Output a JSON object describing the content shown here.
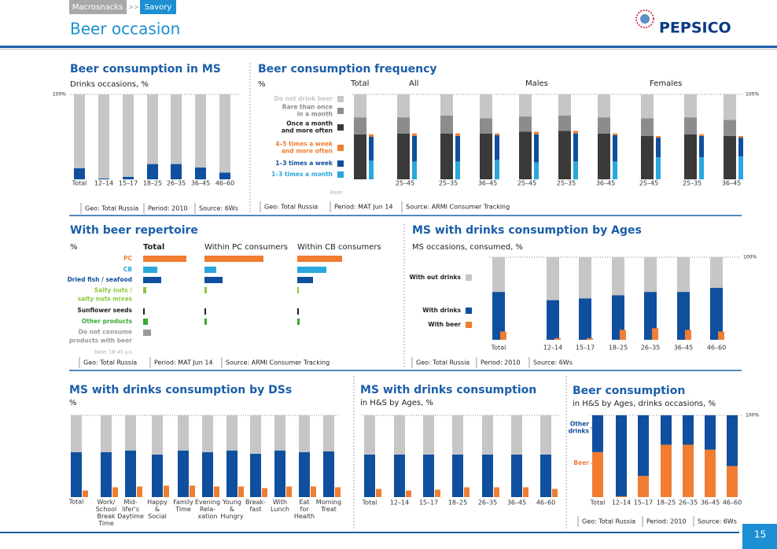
{
  "header": {
    "breadcrumb": [
      "Macrosnacks",
      ">>",
      "Savory"
    ],
    "title": "Beer occasion",
    "logo": "PEPSICO"
  },
  "page_number": "15",
  "chart_data": [
    {
      "type": "bar",
      "stacked": true,
      "title": "Beer consumption in MS",
      "subtitle": "Drinks occasions, %",
      "categories": [
        "Total",
        "12–14",
        "15–17",
        "18–25",
        "26–35",
        "36–45",
        "46–60"
      ],
      "series": [
        {
          "color": "#c6c6c6",
          "values": [
            87,
            99,
            97,
            82,
            82,
            86,
            92
          ]
        },
        {
          "color": "#0f4f9e",
          "values": [
            13,
            1,
            3,
            18,
            18,
            14,
            8
          ]
        }
      ],
      "ylim": [
        0,
        100
      ],
      "yticks": [
        {
          "value": 100,
          "label": "100%"
        }
      ],
      "notes": [
        "Geo: Total Russia",
        "Period: 2010",
        "Source: 6Ws"
      ]
    },
    {
      "type": "bar",
      "stacked": true,
      "title": "Beer consumption frequency",
      "subtitle": "%",
      "groups": [
        "Total",
        "All",
        "Males",
        "Females"
      ],
      "categories": [
        null,
        "25–45",
        "25–35",
        "36–45",
        "25–45",
        "25–35",
        "36–45",
        "25–45",
        "25–35",
        "36–45"
      ],
      "series": [
        {
          "name": "Do not drink beer",
          "color": "#c6c6c6",
          "values": [
            27,
            27,
            25,
            28,
            26,
            25,
            27,
            28,
            27,
            30
          ]
        },
        {
          "name": "Rare than once\nin a month",
          "color": "#8c8c8c",
          "values": [
            20,
            19,
            21,
            18,
            18,
            18,
            19,
            21,
            20,
            19
          ]
        },
        {
          "name": "Once a month\nand more often",
          "color": "#3a3a3a",
          "values": [
            53,
            54,
            54,
            54,
            56,
            57,
            54,
            51,
            53,
            51
          ]
        },
        {
          "name": "4–5 times a week\nand more often",
          "color": "#f07d32",
          "stack": "side",
          "values": [
            3,
            3,
            3,
            2,
            3,
            3,
            2,
            2,
            2,
            2
          ]
        },
        {
          "name": "1–3 times a week",
          "color": "#0f4f9e",
          "stack": "side",
          "values": [
            28,
            30,
            30,
            29,
            33,
            33,
            31,
            23,
            25,
            22
          ]
        },
        {
          "name": "1–3 times a month",
          "color": "#2aa7dc",
          "stack": "side",
          "values": [
            22,
            21,
            21,
            23,
            20,
            21,
            21,
            26,
            26,
            27
          ]
        }
      ],
      "ylim": [
        0,
        100
      ],
      "yticks": [
        {
          "value": 100,
          "label": "100%"
        }
      ],
      "base_label": "Base:",
      "notes": [
        "Geo: Total Russia",
        "Period: MAT Jun 14",
        "Source: ARMI Consumer Tracking"
      ]
    },
    {
      "type": "barh",
      "title": "With beer repertoire",
      "subtitle": "%",
      "categories": [
        "PC",
        "CB",
        "Dried fish / seafood",
        "Salty nuts /\nsalty nuts mixes",
        "Sunflower seeds",
        "Other products",
        "Do not consume\nproducts with beer"
      ],
      "colors": [
        "#f07d32",
        "#2aa7dc",
        "#0f4f9e",
        "#8cc63f",
        "#222222",
        "#3aaa35",
        "#9a9a9a"
      ],
      "series": [
        {
          "name": "Total",
          "values": [
            55,
            18,
            23,
            4,
            2,
            6,
            10
          ]
        },
        {
          "name": "Within PC consumers",
          "values": [
            75,
            15,
            23,
            3,
            2,
            3,
            0
          ]
        },
        {
          "name": "Within CB consumers",
          "values": [
            57,
            37,
            20,
            2,
            2,
            3,
            0
          ]
        }
      ],
      "xlim": [
        0,
        100
      ],
      "base_label": "Base: 18–45 y.o.",
      "notes": [
        "Geo: Total Russia",
        "Period: MAT Jun 14",
        "Source: ARMI Consumer Tracking"
      ]
    },
    {
      "type": "bar",
      "stacked": true,
      "title": "MS with drinks consumption by Ages",
      "subtitle": "MS occasions, consumed, %",
      "categories": [
        "Total",
        "12–14",
        "15–17",
        "18–25",
        "26–35",
        "36–45",
        "46–60"
      ],
      "series": [
        {
          "name": "With out drinks",
          "color": "#c6c6c6",
          "values": [
            42,
            52,
            50,
            46,
            42,
            42,
            37
          ]
        },
        {
          "name": "With drinks",
          "color": "#0f4f9e",
          "values": [
            58,
            48,
            50,
            54,
            58,
            58,
            63
          ]
        },
        {
          "name": "With beer",
          "color": "#f07d32",
          "stack": "side",
          "values": [
            10,
            2,
            2,
            12,
            14,
            12,
            10
          ]
        }
      ],
      "ylim": [
        0,
        100
      ],
      "yticks": [
        {
          "value": 100,
          "label": "100%"
        }
      ],
      "notes": [
        "Geo: Total Russia",
        "Period: 2010",
        "Source: 6Ws"
      ]
    },
    {
      "type": "bar",
      "stacked": true,
      "title": "MS with drinks consumption by DSs",
      "subtitle": "%",
      "categories": [
        "Total",
        "Work/\nSchool\nBreak\nTime",
        "Mid-\nlifer's\nDaytime",
        "Happy\n&\nSocial",
        "Family\nTime",
        "Evening\nRela-\nxation",
        "Young\n&\nHungry",
        "Break-\nfast",
        "With\nLunch",
        "Eat\nfor\nHealth",
        "Morning\nTreat"
      ],
      "series": [
        {
          "color": "#c6c6c6",
          "values": [
            45,
            45,
            43,
            48,
            43,
            45,
            43,
            47,
            43,
            45,
            44
          ]
        },
        {
          "color": "#0f4f9e",
          "values": [
            55,
            55,
            57,
            52,
            57,
            55,
            57,
            53,
            57,
            55,
            56
          ]
        },
        {
          "color": "#f07d32",
          "stack": "side",
          "values": [
            8,
            12,
            13,
            14,
            14,
            13,
            13,
            11,
            13,
            13,
            12
          ]
        }
      ],
      "ylim": [
        0,
        100
      ]
    },
    {
      "type": "bar",
      "stacked": true,
      "title": "MS with drinks consumption",
      "subtitle": "in H&S by Ages, %",
      "categories": [
        "Total",
        "12–14",
        "15–17",
        "18–25",
        "26–35",
        "36–45",
        "46–60"
      ],
      "series": [
        {
          "color": "#c6c6c6",
          "values": [
            48,
            48,
            48,
            48,
            48,
            48,
            48
          ]
        },
        {
          "color": "#0f4f9e",
          "values": [
            52,
            52,
            52,
            52,
            52,
            52,
            52
          ]
        },
        {
          "color": "#f07d32",
          "stack": "side",
          "values": [
            10,
            8,
            9,
            12,
            12,
            12,
            10
          ]
        }
      ],
      "ylim": [
        0,
        100
      ]
    },
    {
      "type": "bar",
      "stacked": true,
      "title": "Beer consumption",
      "subtitle": "in H&S by Ages, drinks occasions, %",
      "categories": [
        "Total",
        "12–14",
        "15–17",
        "18–25",
        "26–35",
        "36–45",
        "46–60"
      ],
      "series": [
        {
          "name": "Other\ndrinks",
          "color": "#0f4f9e",
          "values": [
            45,
            99,
            74,
            36,
            36,
            42,
            62
          ]
        },
        {
          "name": "Beer",
          "color": "#f07d32",
          "values": [
            55,
            1,
            26,
            64,
            64,
            58,
            38
          ]
        }
      ],
      "ylim": [
        0,
        100
      ],
      "yticks": [
        {
          "value": 100,
          "label": "100%"
        }
      ],
      "notes": [
        "Geo: Total Russia",
        "Period: 2010",
        "Source: 6Ws"
      ]
    }
  ]
}
